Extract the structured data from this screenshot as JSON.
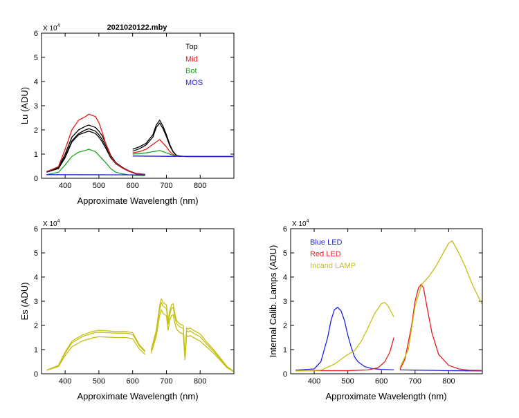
{
  "chart_data": [
    {
      "type": "line",
      "title": "2021020122.mby",
      "ylabel": "Lu (ADU)",
      "xlabel": "Approximate Wavelength (nm)",
      "xlim": [
        330,
        900
      ],
      "ylim": [
        0,
        60000
      ],
      "xticks": [
        400,
        500,
        600,
        700,
        800
      ],
      "xtick_labels": [
        "400",
        "500",
        "600",
        "700",
        "800"
      ],
      "yticks": [
        0,
        10000,
        20000,
        30000,
        40000,
        50000,
        60000
      ],
      "ytick_labels": [
        "0",
        "1",
        "2",
        "3",
        "4",
        "5",
        "6"
      ],
      "scale_label": "X 10",
      "scale_exp": "4",
      "legend": [
        {
          "name": "Top",
          "color": "#000000"
        },
        {
          "name": "Mid",
          "color": "#e41a1c"
        },
        {
          "name": "Bot",
          "color": "#1fa51f"
        },
        {
          "name": "MOS",
          "color": "#1f1fe0"
        }
      ],
      "series": [
        {
          "name": "Top",
          "color": "#000000",
          "x": [
            345,
            380,
            400,
            420,
            440,
            460,
            470,
            480,
            490,
            500,
            510,
            520,
            535,
            550,
            570,
            590,
            610,
            637
          ],
          "y": [
            2800,
            4500,
            10000,
            17000,
            20000,
            21500,
            22000,
            21500,
            21000,
            19500,
            17500,
            14500,
            9500,
            6500,
            4500,
            3000,
            2000,
            1600
          ]
        },
        {
          "name": "Top",
          "color": "#000000",
          "x": [
            345,
            380,
            400,
            420,
            440,
            460,
            470,
            480,
            490,
            500,
            510,
            520,
            535,
            550,
            570,
            590,
            610,
            637
          ],
          "y": [
            2600,
            4200,
            9000,
            15500,
            18500,
            20000,
            20500,
            20000,
            19500,
            18000,
            16000,
            13500,
            9000,
            6200,
            4300,
            2900,
            1900,
            1500
          ]
        },
        {
          "name": "Top",
          "color": "#000000",
          "x": [
            345,
            380,
            400,
            420,
            440,
            460,
            470,
            480,
            490,
            500,
            510,
            520,
            535,
            550,
            570,
            590,
            610,
            637
          ],
          "y": [
            2500,
            4000,
            8500,
            15000,
            18000,
            19000,
            19500,
            19000,
            18500,
            17000,
            15000,
            12500,
            8500,
            6000,
            4200,
            2800,
            1800,
            1500
          ]
        },
        {
          "name": "Mid",
          "color": "#e41a1c",
          "x": [
            345,
            380,
            400,
            420,
            440,
            460,
            470,
            480,
            490,
            500,
            510,
            520,
            535,
            550,
            570,
            590,
            610,
            637
          ],
          "y": [
            2700,
            4800,
            12000,
            20000,
            24000,
            25500,
            26500,
            26000,
            25500,
            23000,
            19000,
            14500,
            9000,
            6200,
            4300,
            2900,
            1900,
            1500
          ]
        },
        {
          "name": "Bot",
          "color": "#1fa51f",
          "x": [
            345,
            380,
            400,
            420,
            440,
            460,
            470,
            480,
            490,
            500,
            510,
            520,
            535,
            550,
            570,
            590,
            610,
            637
          ],
          "y": [
            1500,
            2500,
            5500,
            9000,
            10800,
            11500,
            12000,
            11500,
            11000,
            9500,
            8000,
            6500,
            4000,
            2500,
            1800,
            1400,
            1200,
            1100
          ]
        },
        {
          "name": "MOS",
          "color": "#1f1fe0",
          "x": [
            345,
            637
          ],
          "y": [
            1500,
            1400
          ]
        },
        {
          "name": "Top",
          "color": "#000000",
          "x": [
            600,
            620,
            640,
            660,
            670,
            680,
            690,
            700,
            710,
            720,
            730,
            740,
            760,
            800,
            850,
            898
          ],
          "y": [
            12000,
            13000,
            14500,
            18000,
            22000,
            24000,
            21500,
            18000,
            14000,
            11000,
            9500,
            9200,
            9000,
            9000,
            9000,
            9000
          ]
        },
        {
          "name": "Top",
          "color": "#000000",
          "x": [
            600,
            620,
            640,
            660,
            670,
            680,
            690,
            700,
            710,
            720,
            730,
            740,
            760,
            800,
            850,
            898
          ],
          "y": [
            11200,
            12200,
            13800,
            17000,
            21000,
            22800,
            20500,
            17200,
            13500,
            10800,
            9400,
            9100,
            9000,
            9000,
            9000,
            9000
          ]
        },
        {
          "name": "Mid",
          "color": "#e41a1c",
          "x": [
            600,
            620,
            640,
            660,
            670,
            680,
            690,
            700,
            710,
            720,
            730,
            740,
            760,
            800,
            850,
            898
          ],
          "y": [
            10500,
            11000,
            12000,
            14000,
            15000,
            16000,
            14500,
            13000,
            11000,
            9800,
            9300,
            9100,
            9000,
            9000,
            9000,
            9000
          ]
        },
        {
          "name": "Bot",
          "color": "#1fa51f",
          "x": [
            600,
            620,
            640,
            660,
            670,
            680,
            690,
            700,
            710,
            720,
            730,
            740,
            760,
            800,
            850,
            898
          ],
          "y": [
            10000,
            10200,
            10500,
            11000,
            11200,
            11500,
            11000,
            10500,
            10000,
            9500,
            9200,
            9100,
            9000,
            9000,
            9000,
            9000
          ]
        },
        {
          "name": "MOS",
          "color": "#1f1fe0",
          "x": [
            600,
            700,
            800,
            898
          ],
          "y": [
            9200,
            9100,
            9000,
            9000
          ]
        }
      ]
    },
    {
      "type": "line",
      "ylabel": "Es  (ADU)",
      "xlabel": "Approximate Wavelength (nm)",
      "xlim": [
        330,
        900
      ],
      "ylim": [
        0,
        60000
      ],
      "xticks": [
        400,
        500,
        600,
        700,
        800
      ],
      "xtick_labels": [
        "400",
        "500",
        "600",
        "700",
        "800"
      ],
      "yticks": [
        0,
        10000,
        20000,
        30000,
        40000,
        50000,
        60000
      ],
      "ytick_labels": [
        "0",
        "1",
        "2",
        "3",
        "4",
        "5",
        "6"
      ],
      "scale_label": "X 10",
      "scale_exp": "4",
      "series": [
        {
          "name": "Es",
          "color": "#c4c016",
          "x": [
            345,
            380,
            400,
            420,
            450,
            480,
            500,
            520,
            550,
            580,
            600,
            620,
            637
          ],
          "y": [
            1500,
            3500,
            9000,
            13500,
            16000,
            17500,
            18000,
            17800,
            17500,
            17500,
            17000,
            12000,
            9500
          ]
        },
        {
          "name": "Es",
          "color": "#c4c016",
          "x": [
            345,
            380,
            400,
            420,
            450,
            480,
            500,
            520,
            550,
            580,
            600,
            620,
            637
          ],
          "y": [
            1500,
            3300,
            8500,
            12800,
            15300,
            16800,
            17200,
            17000,
            16800,
            16800,
            16300,
            11500,
            9000
          ]
        },
        {
          "name": "Es",
          "color": "#c4c016",
          "x": [
            345,
            380,
            400,
            420,
            450,
            480,
            500,
            520,
            550,
            580,
            600,
            620,
            637
          ],
          "y": [
            1400,
            3000,
            7500,
            11200,
            13500,
            14800,
            15300,
            15200,
            15000,
            15000,
            14500,
            10200,
            8000
          ]
        },
        {
          "name": "Es",
          "color": "#c4c016",
          "x": [
            655,
            670,
            680,
            685,
            690,
            700,
            705,
            710,
            715,
            720,
            725,
            730,
            740,
            750,
            755,
            760,
            765,
            770,
            780,
            800,
            820,
            840,
            860,
            880,
            898
          ],
          "y": [
            10000,
            18000,
            28000,
            31000,
            29500,
            28500,
            22000,
            26000,
            28500,
            29000,
            25000,
            22000,
            20500,
            20000,
            7000,
            19000,
            18500,
            19000,
            18000,
            16500,
            13000,
            10000,
            6500,
            3000,
            1200
          ]
        },
        {
          "name": "Es",
          "color": "#c4c016",
          "x": [
            655,
            670,
            680,
            685,
            690,
            700,
            705,
            710,
            715,
            720,
            725,
            730,
            740,
            750,
            755,
            760,
            765,
            770,
            780,
            800,
            820,
            840,
            860,
            880,
            898
          ],
          "y": [
            9500,
            17000,
            26500,
            29500,
            28000,
            27000,
            20500,
            24500,
            27000,
            27500,
            23500,
            20800,
            19300,
            18800,
            6500,
            17800,
            17300,
            17800,
            16800,
            15300,
            12200,
            9300,
            6000,
            2800,
            1100
          ]
        },
        {
          "name": "Es",
          "color": "#c4c016",
          "x": [
            655,
            670,
            680,
            685,
            690,
            700,
            705,
            710,
            715,
            720,
            725,
            730,
            740,
            750,
            755,
            760,
            765,
            770,
            780,
            800,
            820,
            840,
            860,
            880,
            898
          ],
          "y": [
            8500,
            15500,
            24000,
            26500,
            25000,
            24000,
            18000,
            22000,
            24000,
            24500,
            21000,
            18500,
            17000,
            16500,
            5800,
            15800,
            15300,
            15800,
            15000,
            13500,
            11000,
            8500,
            5500,
            2500,
            1000
          ]
        }
      ]
    },
    {
      "type": "line",
      "ylabel": "Internal Calib. Lamps  (ADU)",
      "xlabel": "Approximate Wavelength (nm)",
      "xlim": [
        330,
        900
      ],
      "ylim": [
        0,
        60000
      ],
      "xticks": [
        400,
        500,
        600,
        700,
        800
      ],
      "xtick_labels": [
        "400",
        "500",
        "600",
        "700",
        "800"
      ],
      "yticks": [
        0,
        10000,
        20000,
        30000,
        40000,
        50000,
        60000
      ],
      "ytick_labels": [
        "0",
        "1",
        "2",
        "3",
        "4",
        "5",
        "6"
      ],
      "scale_label": "X 10",
      "scale_exp": "4",
      "legend": [
        {
          "name": "Blue LED",
          "color": "#1f1fe0"
        },
        {
          "name": "Red LED",
          "color": "#e41a1c"
        },
        {
          "name": "Incand LAMP",
          "color": "#c4c016"
        }
      ],
      "series": [
        {
          "name": "Blue LED",
          "color": "#1f1fe0",
          "x": [
            345,
            400,
            420,
            440,
            450,
            460,
            470,
            480,
            490,
            500,
            510,
            520,
            530,
            550,
            570,
            600,
            637
          ],
          "y": [
            1500,
            2000,
            5000,
            15000,
            22000,
            26500,
            27500,
            26000,
            22000,
            16000,
            11000,
            7000,
            5000,
            3000,
            2200,
            1800,
            1600
          ]
        },
        {
          "name": "Blue LED",
          "color": "#1f1fe0",
          "x": [
            655,
            720,
            800,
            898
          ],
          "y": [
            1600,
            1500,
            1300,
            1200
          ]
        },
        {
          "name": "Red LED",
          "color": "#e41a1c",
          "x": [
            345,
            500,
            560,
            590,
            610,
            625,
            637
          ],
          "y": [
            1300,
            1300,
            1600,
            2500,
            5000,
            9000,
            15000
          ]
        },
        {
          "name": "Red LED",
          "color": "#e41a1c",
          "x": [
            655,
            670,
            690,
            700,
            710,
            718,
            725,
            735,
            750,
            770,
            800,
            830,
            860,
            898
          ],
          "y": [
            1800,
            6000,
            20000,
            30000,
            35500,
            37000,
            35500,
            28000,
            17000,
            8000,
            3500,
            2000,
            1500,
            1400
          ]
        },
        {
          "name": "Incand LAMP",
          "color": "#c4c016",
          "x": [
            345,
            420,
            460,
            500,
            520,
            540,
            560,
            580,
            600,
            610,
            620,
            637
          ],
          "y": [
            1200,
            1500,
            4000,
            8000,
            9500,
            13500,
            19000,
            25000,
            29000,
            29500,
            28000,
            23500
          ]
        },
        {
          "name": "Incand LAMP",
          "color": "#c4c016",
          "x": [
            655,
            680,
            700,
            720,
            740,
            760,
            780,
            800,
            810,
            830,
            850,
            870,
            898
          ],
          "y": [
            2500,
            10000,
            28000,
            37000,
            40000,
            44000,
            49000,
            54000,
            55000,
            50000,
            44000,
            37000,
            29000
          ]
        }
      ]
    }
  ]
}
